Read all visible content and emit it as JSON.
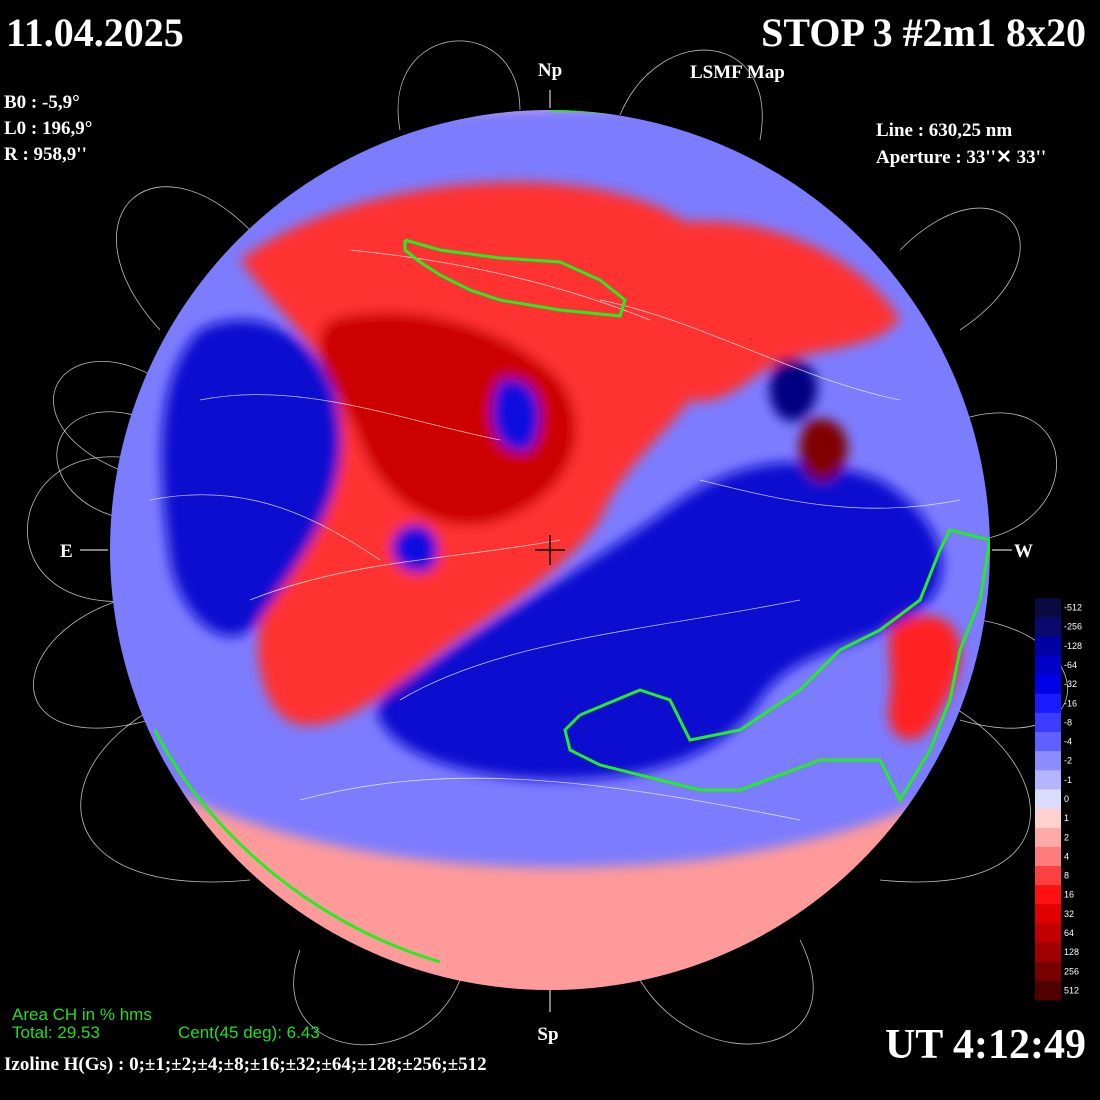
{
  "header": {
    "date": "11.04.2025",
    "instrument": "STOP 3 #2m1 8x20",
    "map_title": "LSMF  Map"
  },
  "ephemeris": {
    "b0": "B0 : -5,9°",
    "l0": "L0 : 196,9°",
    "radius": "R  : 958,9''"
  },
  "observation": {
    "line": "Line :  630,25 nm",
    "aperture": "Aperture : 33''✕ 33''"
  },
  "directions": {
    "north": "Np",
    "south": "Sp",
    "east": "E",
    "west": "W"
  },
  "coronal_holes": {
    "title": "Area CH in % hms",
    "total": "Total: 29.53",
    "central": "Cent(45 deg): 6.43"
  },
  "time": "UT 4:12:49",
  "isolines": "Izoline H(Gs) : 0;±1;±2;±4;±8;±16;±32;±64;±128;±256;±512",
  "colorbar": {
    "levels": [
      -512,
      -256,
      -128,
      -64,
      -32,
      -16,
      -8,
      -4,
      -2,
      -1,
      0,
      1,
      2,
      4,
      8,
      16,
      32,
      64,
      128,
      256,
      512
    ],
    "colors": [
      "#0a0a40",
      "#0a0a6e",
      "#0000a0",
      "#0000c8",
      "#0000e6",
      "#1a1aff",
      "#3c3cff",
      "#6060ff",
      "#8c8cff",
      "#b4b4ff",
      "#dcdcff",
      "#ffd0d0",
      "#ffaaaa",
      "#ff7c7c",
      "#ff4040",
      "#ff1010",
      "#e00000",
      "#c00000",
      "#a00000",
      "#780000",
      "#500000"
    ]
  }
}
